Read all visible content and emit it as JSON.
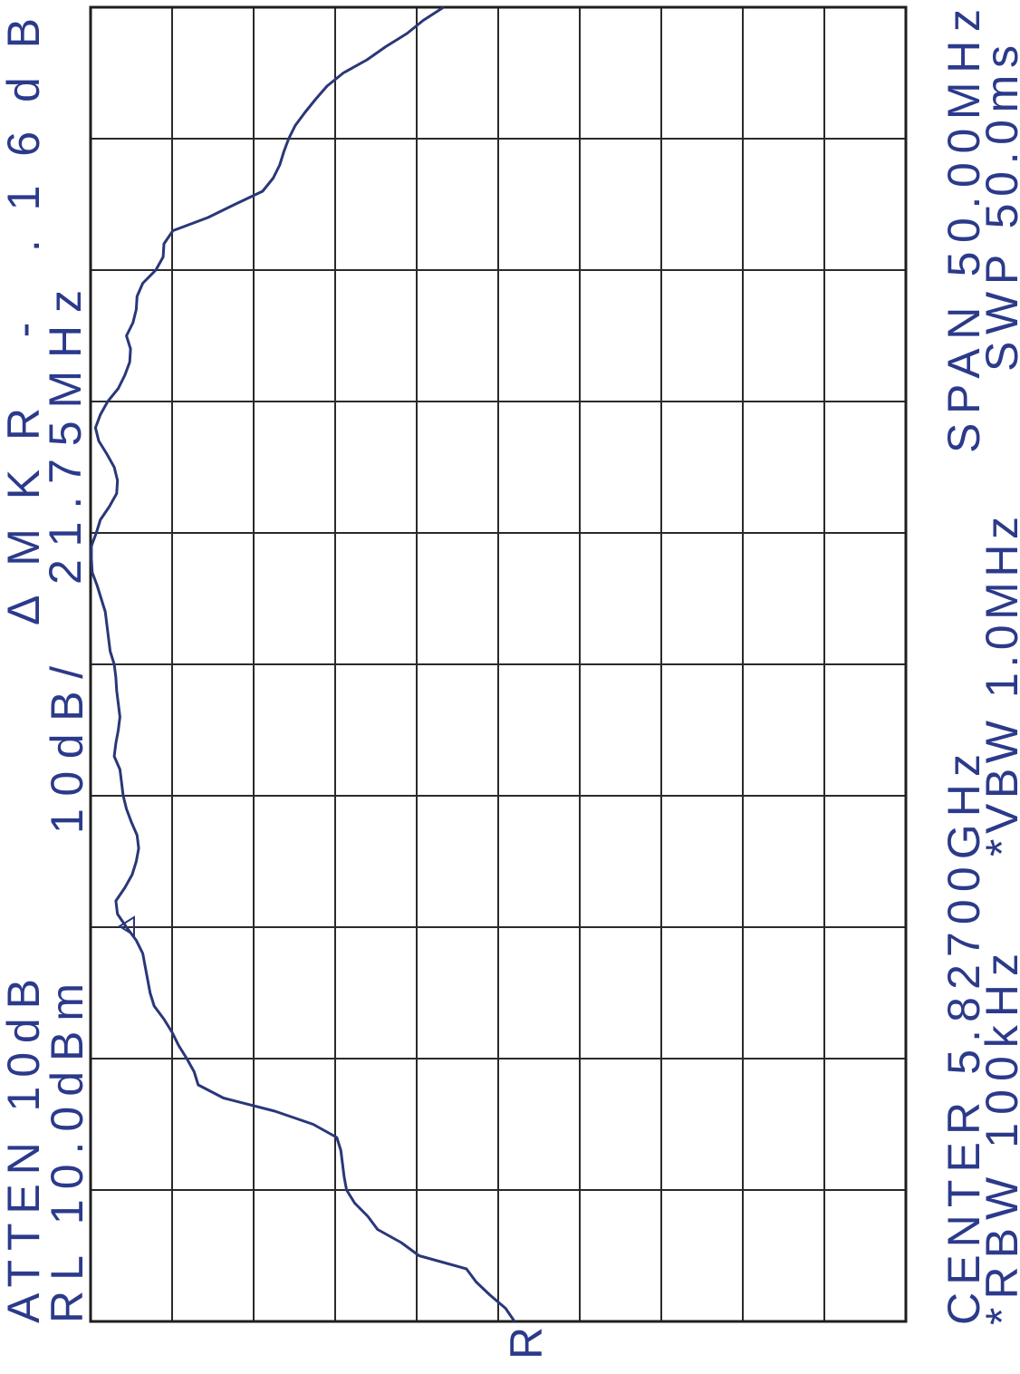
{
  "chart_data": {
    "type": "line",
    "annotations": [
      "ATTEN 10dB",
      "RL 10.0dBm",
      "10dB/",
      "ΔMKR - .16dB",
      "21.75MHz",
      "CENTER 5.82700GHz",
      "*RBW 100kHz",
      "*VBW 1.0MHz",
      "SPAN 50.00MHz",
      "SWP 50.0ms"
    ],
    "marker_label": "R",
    "x": [
      5.802,
      5.8025,
      5.803,
      5.8035,
      5.804,
      5.8045,
      5.805,
      5.8055,
      5.806,
      5.8065,
      5.807,
      5.8075,
      5.808,
      5.8085,
      5.809,
      5.8095,
      5.81,
      5.8105,
      5.811,
      5.8115,
      5.812,
      5.8125,
      5.813,
      5.8135,
      5.814,
      5.8145,
      5.815,
      5.8155,
      5.816,
      5.8165,
      5.817,
      5.8175,
      5.818,
      5.8185,
      5.819,
      5.8195,
      5.82,
      5.8205,
      5.821,
      5.8215,
      5.822,
      5.8225,
      5.823,
      5.8235,
      5.824,
      5.8245,
      5.825,
      5.8255,
      5.826,
      5.8265,
      5.827,
      5.8275,
      5.828,
      5.8285,
      5.829,
      5.8295,
      5.83,
      5.8305,
      5.831,
      5.8315,
      5.832,
      5.8325,
      5.833,
      5.8335,
      5.834,
      5.8345,
      5.835,
      5.8355,
      5.836,
      5.8365,
      5.837,
      5.8375,
      5.838,
      5.8385,
      5.839,
      5.8395,
      5.84,
      5.8405,
      5.841,
      5.8415,
      5.842,
      5.8425,
      5.843,
      5.8435,
      5.844,
      5.8445,
      5.845,
      5.8455,
      5.846,
      5.8465,
      5.847,
      5.8475,
      5.848,
      5.8485,
      5.849,
      5.8495,
      5.85,
      5.8505,
      5.851,
      5.8515,
      5.852
    ],
    "values": [
      -42.0,
      -40.9,
      -39.0,
      -37.3,
      -36.1,
      -30.3,
      -28.1,
      -25.2,
      -24.0,
      -22.4,
      -21.4,
      -21.1,
      -20.9,
      -20.7,
      -20.2,
      -17.3,
      -12.6,
      -6.3,
      -3.2,
      -2.7,
      -1.8,
      -0.8,
      0.0,
      1.0,
      2.2,
      2.7,
      3.0,
      3.3,
      3.6,
      4.4,
      5.6,
      6.7,
      6.9,
      5.8,
      4.9,
      4.4,
      4.1,
      4.3,
      5.0,
      5.6,
      6.0,
      6.2,
      6.4,
      7.1,
      6.9,
      6.6,
      6.4,
      6.6,
      6.8,
      6.9,
      7.1,
      7.6,
      7.8,
      8.0,
      8.2,
      8.7,
      9.2,
      9.8,
      9.9,
      9.9,
      9.3,
      8.8,
      7.7,
      6.8,
      6.7,
      7.1,
      8.0,
      9.0,
      9.4,
      8.8,
      7.9,
      6.6,
      5.8,
      5.2,
      5.1,
      5.6,
      4.8,
      4.4,
      4.3,
      3.6,
      2.0,
      1.1,
      1.0,
      -0.1,
      -4.4,
      -7.7,
      -11.1,
      -12.4,
      -13.2,
      -13.7,
      -14.3,
      -15.1,
      -16.3,
      -17.6,
      -19.0,
      -21.0,
      -23.9,
      -26.2,
      -28.8,
      -30.8,
      -33.3
    ],
    "color": "#2a3778",
    "xlim": [
      5.802,
      5.852
    ],
    "ylim": [
      -90,
      10
    ],
    "grid_divisions": 10,
    "grid": true
  }
}
